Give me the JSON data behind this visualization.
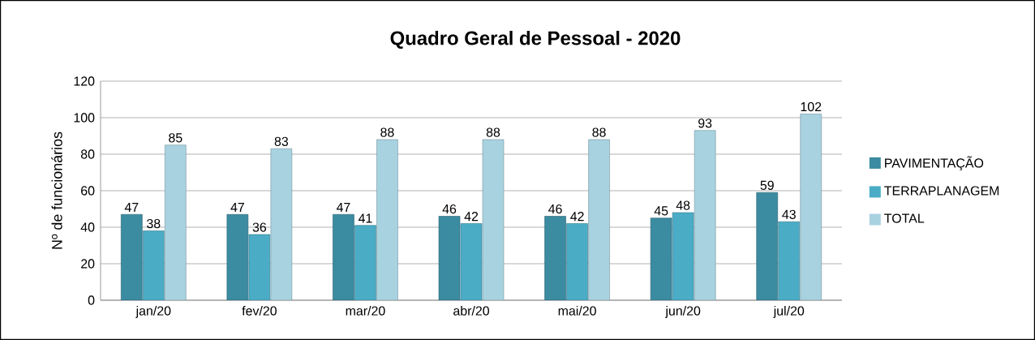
{
  "chart_data": {
    "type": "bar",
    "title": "Quadro Geral de Pessoal - 2020",
    "ylabel": "Nº de funcionários",
    "categories": [
      "jan/20",
      "fev/20",
      "mar/20",
      "abr/20",
      "mai/20",
      "jun/20",
      "jul/20"
    ],
    "series": [
      {
        "name": "PAVIMENTAÇÃO",
        "color": "#3b8ba1",
        "values": [
          47,
          47,
          47,
          46,
          46,
          45,
          59
        ]
      },
      {
        "name": "TERRAPLANAGEM",
        "color": "#4bacc6",
        "values": [
          38,
          36,
          41,
          42,
          42,
          48,
          43
        ]
      },
      {
        "name": "TOTAL",
        "color": "#a8d2e0",
        "values": [
          85,
          83,
          88,
          88,
          88,
          93,
          102
        ]
      }
    ],
    "ylim": [
      0,
      120
    ],
    "yticks": [
      0,
      20,
      40,
      60,
      80,
      100,
      120
    ],
    "grid": "y",
    "legend": "right",
    "data_labels": true
  }
}
